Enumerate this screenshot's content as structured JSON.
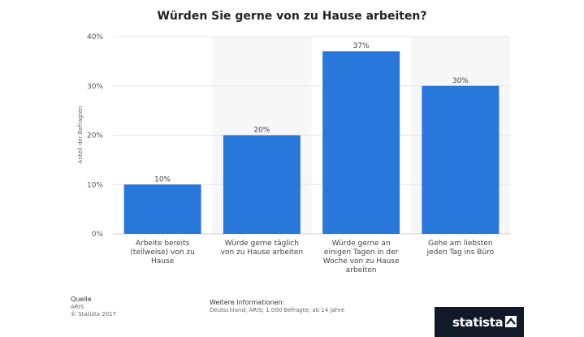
{
  "chart_data": {
    "type": "bar",
    "title": "Würden Sie gerne von zu Hause arbeiten?",
    "ylabel": "Anteil der Befragten",
    "xlabel": "",
    "ylim": [
      0,
      40
    ],
    "yticks": [
      "0%",
      "10%",
      "20%",
      "30%",
      "40%"
    ],
    "categories": [
      "Arbeite bereits (teilweise) von zu Hause",
      "Würde gerne täglich von zu Hause arbeiten",
      "Würde gerne an einigen Tagen in der Woche von zu Hause arbeiten",
      "Gehe am liebsten jeden Tag ins Büro"
    ],
    "category_lines": [
      [
        "Arbeite bereits",
        "(teilweise) von zu",
        "Hause"
      ],
      [
        "Würde gerne täglich",
        "von zu Hause arbeiten"
      ],
      [
        "Würde gerne an",
        "einigen Tagen in der",
        "Woche von zu Hause",
        "arbeiten"
      ],
      [
        "Gehe am liebsten",
        "jeden Tag ins Büro"
      ]
    ],
    "values": [
      10,
      20,
      37,
      30
    ],
    "value_labels": [
      "10%",
      "20%",
      "37%",
      "30%"
    ],
    "bar_color": "#2878dc",
    "grid": true
  },
  "footer": {
    "source_heading": "Quelle",
    "source_lines": [
      "ARIS",
      "© Statista 2017"
    ],
    "info_heading": "Weitere Informationen:",
    "info_text": "Deutschland; ARIS; 1.000 Befragte; ab 14 Jahre"
  },
  "brand": {
    "name": "statista",
    "icon": "statista-logo-icon",
    "background": "#111827"
  }
}
